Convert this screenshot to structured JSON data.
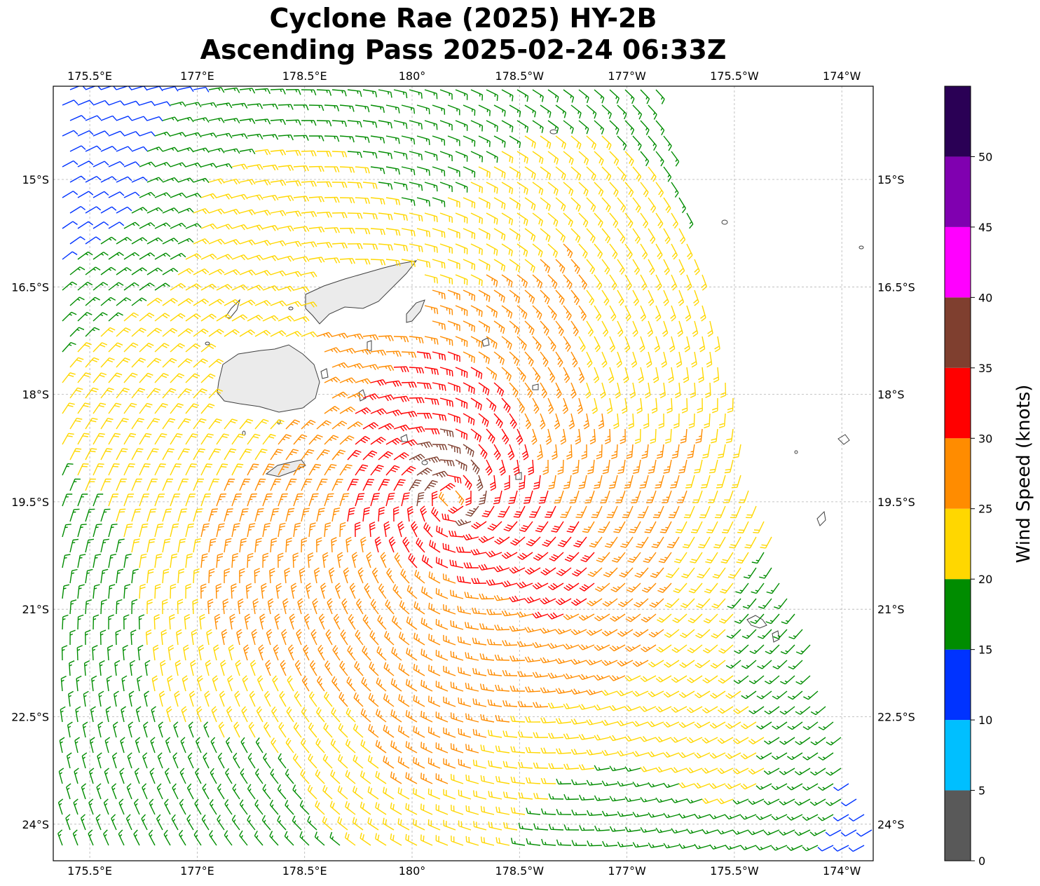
{
  "title": {
    "line1": "Cyclone Rae (2025) HY-2B",
    "line2": "Ascending Pass 2025-02-24 06:33Z"
  },
  "map": {
    "lon_range_deg_east": [
      175.0,
      186.45
    ],
    "lat_range_deg": [
      -25.8,
      -15.0
    ],
    "gridlines": true,
    "storm_center": {
      "lon": 180.55,
      "lat": -19.45
    },
    "lon_ticks": [
      {
        "lon": 175.5,
        "label": "175.5°E"
      },
      {
        "lon": 177.0,
        "label": "177°E"
      },
      {
        "lon": 178.5,
        "label": "178.5°E"
      },
      {
        "lon": 180.0,
        "label": "180°"
      },
      {
        "lon": 181.5,
        "label": "178.5°W"
      },
      {
        "lon": 183.0,
        "label": "177°W"
      },
      {
        "lon": 184.5,
        "label": "175.5°W"
      },
      {
        "lon": 186.0,
        "label": "174°W"
      }
    ],
    "lat_ticks": [
      {
        "lat": -15.0,
        "label": "15°S"
      },
      {
        "lat": -16.5,
        "label": "16.5°S"
      },
      {
        "lat": -18.0,
        "label": "18°S"
      },
      {
        "lat": -19.5,
        "label": "19.5°S"
      },
      {
        "lat": -21.0,
        "label": "21°S"
      },
      {
        "lat": -22.5,
        "label": "22.5°S"
      },
      {
        "lat": -24.0,
        "label": "24°S"
      }
    ]
  },
  "colorbar": {
    "label": "Wind Speed (knots)",
    "bins": [
      {
        "min": 0,
        "max": 5,
        "color": "#595959"
      },
      {
        "min": 5,
        "max": 10,
        "color": "#00bfff"
      },
      {
        "min": 10,
        "max": 15,
        "color": "#0033ff"
      },
      {
        "min": 15,
        "max": 20,
        "color": "#008c00"
      },
      {
        "min": 20,
        "max": 25,
        "color": "#ffd700"
      },
      {
        "min": 25,
        "max": 30,
        "color": "#ff8c00"
      },
      {
        "min": 30,
        "max": 35,
        "color": "#ff0000"
      },
      {
        "min": 35,
        "max": 40,
        "color": "#7f3f2f"
      },
      {
        "min": 40,
        "max": 45,
        "color": "#ff00ff"
      },
      {
        "min": 45,
        "max": 50,
        "color": "#8000b0"
      },
      {
        "min": 50,
        "max": 55,
        "color": "#2a0055"
      }
    ],
    "ticks": [
      "0",
      "5",
      "10",
      "15",
      "20",
      "25",
      "30",
      "35",
      "40",
      "45",
      "50"
    ]
  }
}
